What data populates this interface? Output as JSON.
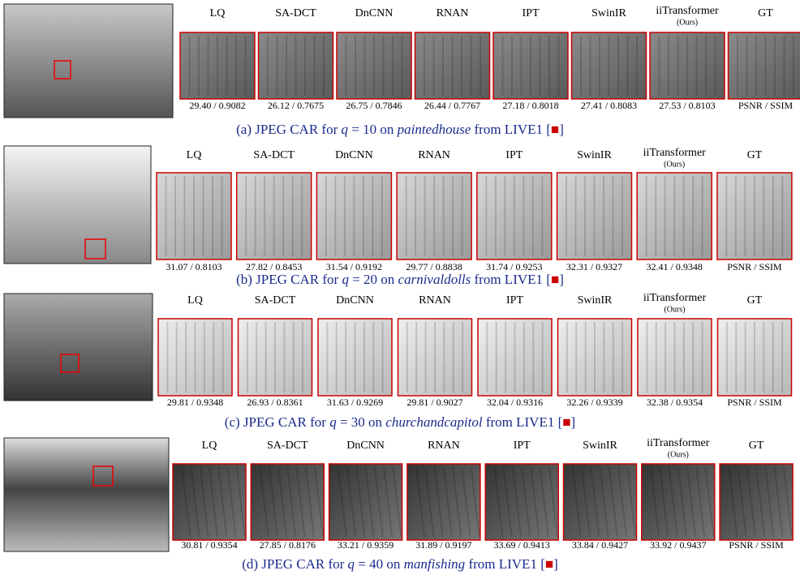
{
  "methods": [
    "LQ",
    "SA-DCT",
    "DnCNN",
    "RNAN",
    "IPT",
    "SwinIR",
    "iiTransformer",
    "GT"
  ],
  "ours": "(Ours)",
  "rows": [
    {
      "metrics": [
        "29.40 / 0.9082",
        "26.12 / 0.7675",
        "26.75 / 0.7846",
        "26.44 / 0.7767",
        "27.18 / 0.8018",
        "27.41 / 0.8083",
        "27.53 / 0.8103",
        "PSNR / SSIM"
      ],
      "caption": {
        "label": "(a) JPEG CAR for ",
        "var": "q",
        "setting": " = 10 on ",
        "image": "paintedhouse",
        "source": " from LIVE1 [",
        "end": "]"
      }
    },
    {
      "metrics": [
        "31.07 / 0.8103",
        "27.82 / 0.8453",
        "31.54 / 0.9192",
        "29.77 / 0.8838",
        "31.74 / 0.9253",
        "32.31 / 0.9327",
        "32.41 / 0.9348",
        "PSNR / SSIM"
      ],
      "caption": {
        "label": "(b) JPEG CAR for ",
        "var": "q",
        "setting": " = 20 on ",
        "image": "carnivaldolls",
        "source": " from LIVE1 [",
        "end": "]"
      }
    },
    {
      "metrics": [
        "29.81 / 0.9348",
        "26.93 / 0.8361",
        "31.63 / 0.9269",
        "29.81 / 0.9027",
        "32.04 / 0.9316",
        "32.26 / 0.9339",
        "32.38 / 0.9354",
        "PSNR / SSIM"
      ],
      "caption": {
        "label": "(c) JPEG CAR for ",
        "var": "q",
        "setting": " = 30 on ",
        "image": "churchandcapitol",
        "source": " from LIVE1 [",
        "end": "]"
      }
    },
    {
      "metrics": [
        "30.81 / 0.9354",
        "27.85 / 0.8176",
        "33.21 / 0.9359",
        "31.89 / 0.9197",
        "33.69 / 0.9413",
        "33.84 / 0.9427",
        "33.92 / 0.9437",
        "PSNR / SSIM"
      ],
      "caption": {
        "label": "(d) JPEG CAR for ",
        "var": "q",
        "setting": " = 40 on ",
        "image": "manfishing",
        "source": " from LIVE1 [",
        "end": "]"
      }
    }
  ]
}
